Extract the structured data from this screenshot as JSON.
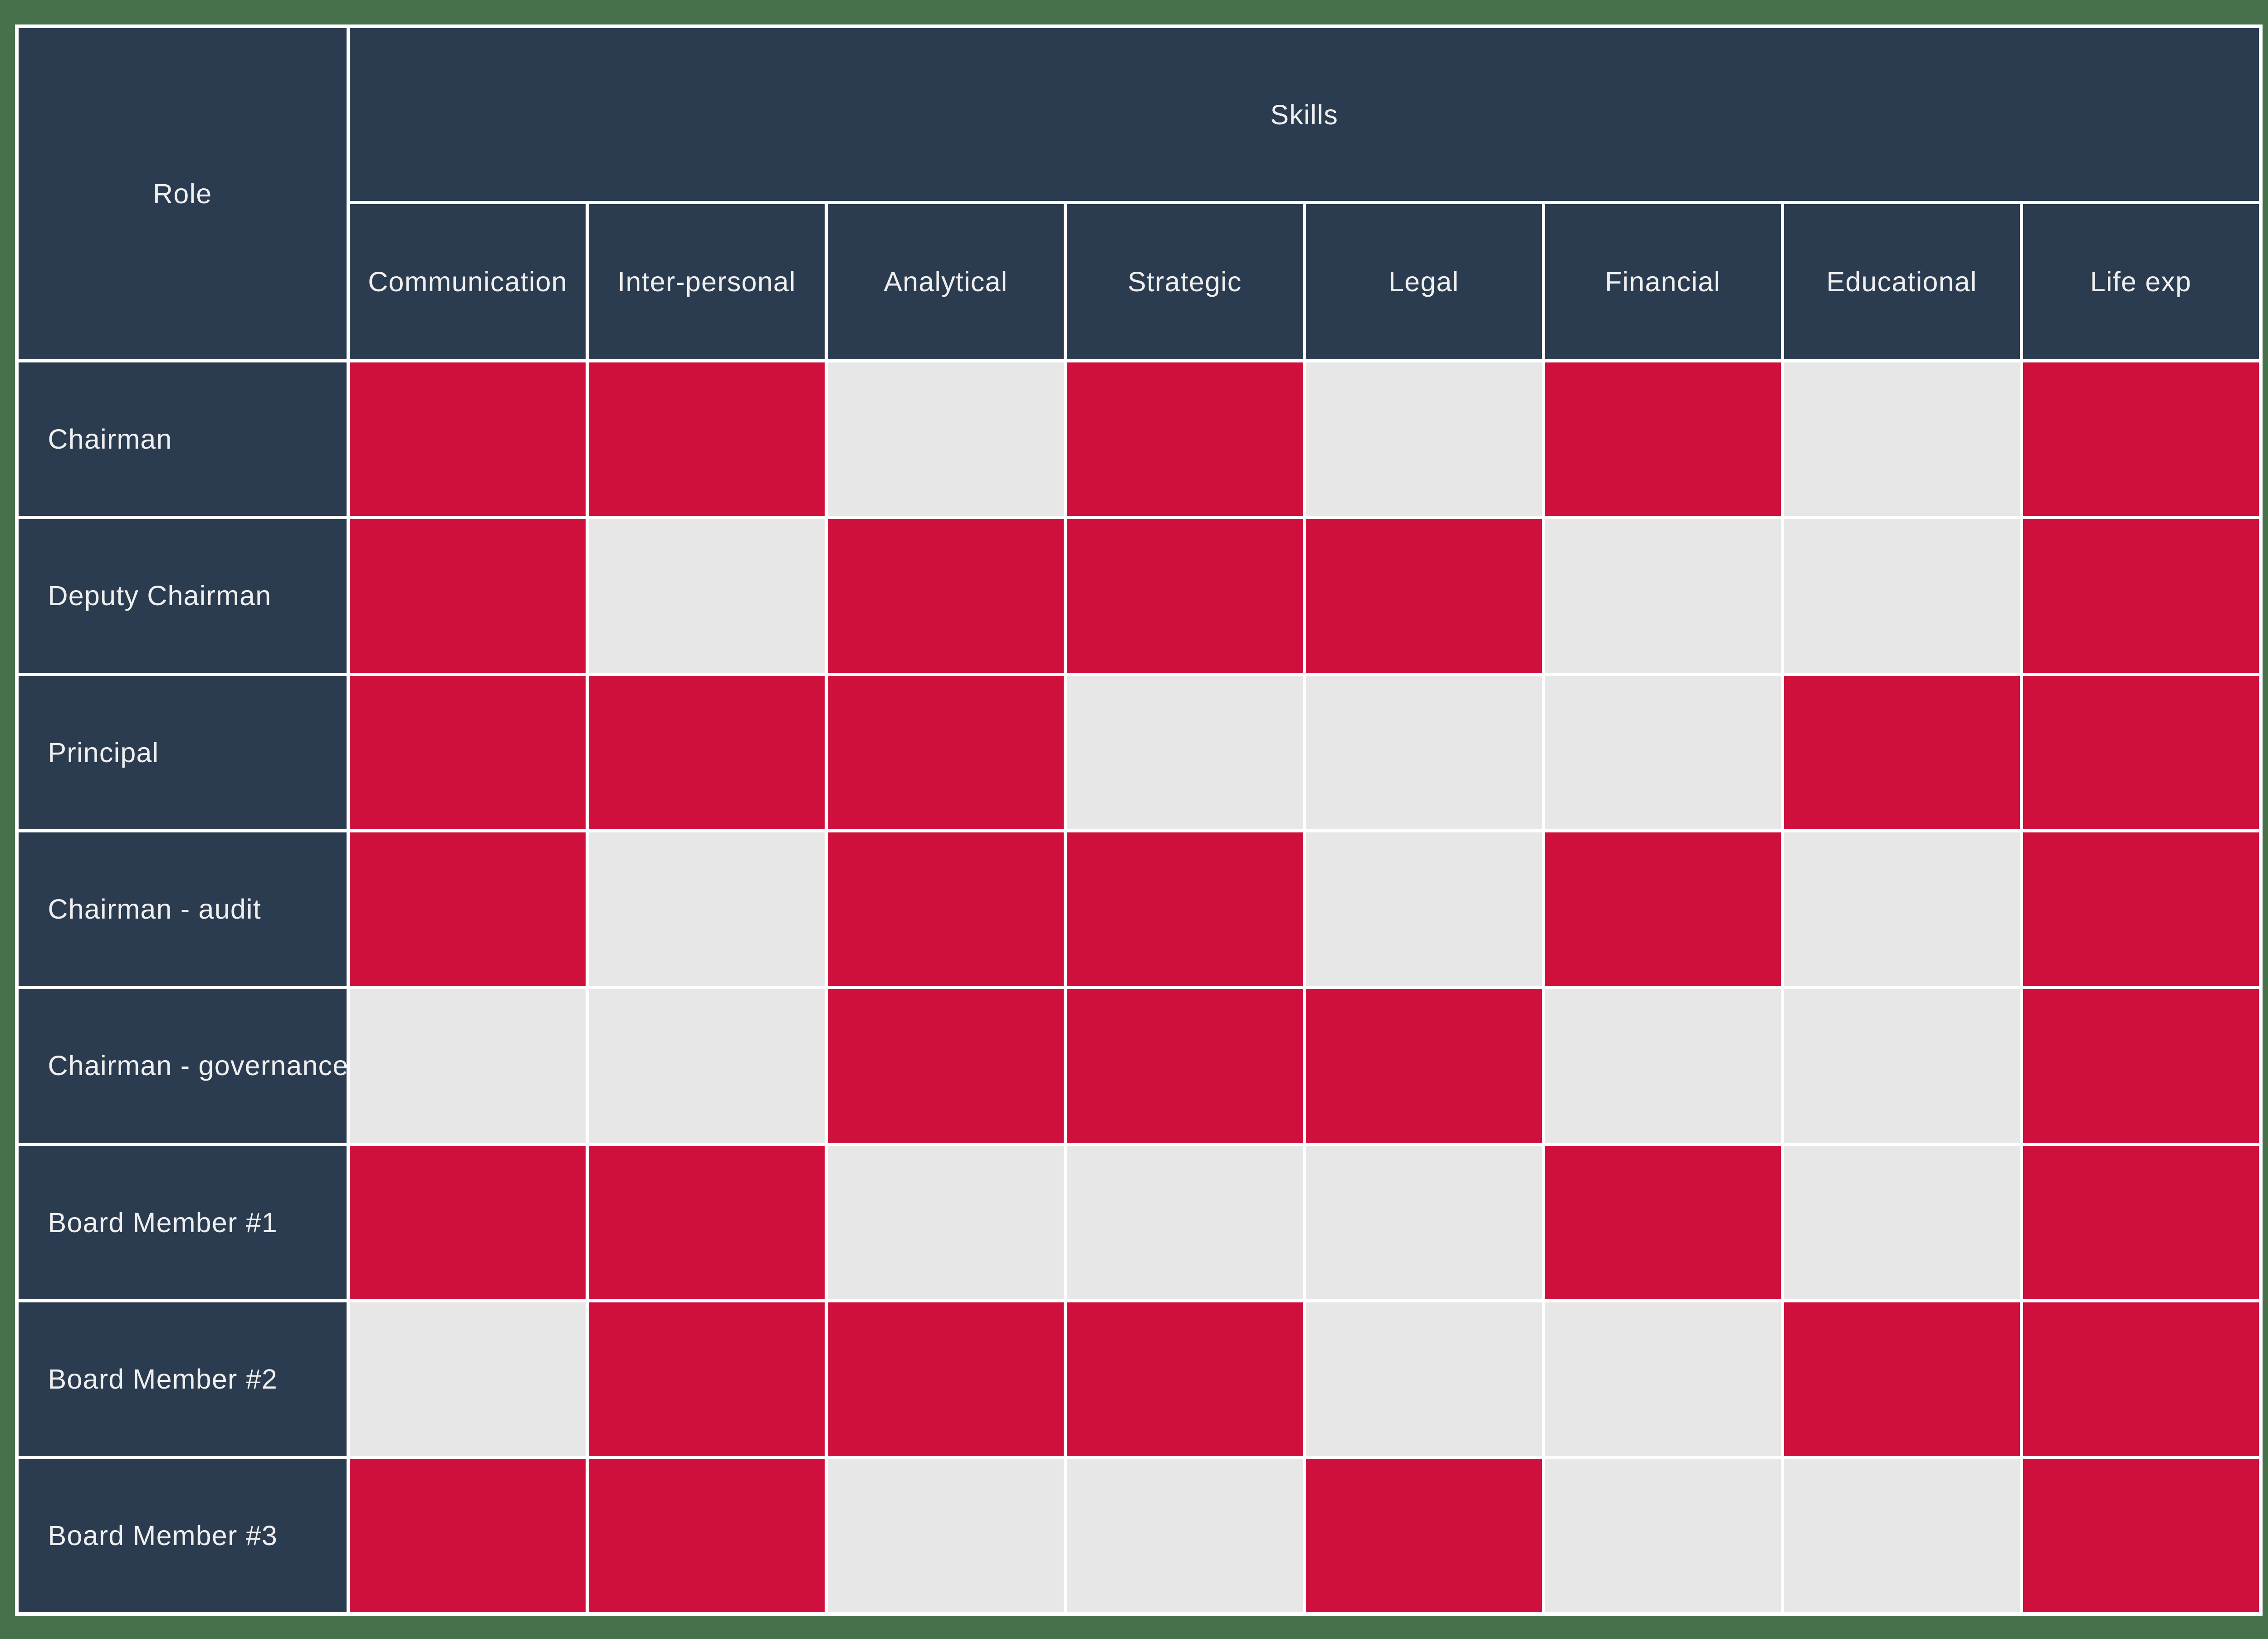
{
  "table": {
    "role_header": "Role",
    "skills_header": "Skills",
    "columns": [
      "Communication",
      "Inter-personal",
      "Analytical",
      "Strategic",
      "Legal",
      "Financial",
      "Educational",
      "Life exp"
    ],
    "rows": [
      {
        "label": "Chairman",
        "skills": [
          1,
          1,
          0,
          1,
          0,
          1,
          0,
          1
        ]
      },
      {
        "label": "Deputy Chairman",
        "skills": [
          1,
          0,
          1,
          1,
          1,
          0,
          0,
          1
        ]
      },
      {
        "label": "Principal",
        "skills": [
          1,
          1,
          1,
          0,
          0,
          0,
          1,
          1
        ]
      },
      {
        "label": "Chairman - audit",
        "skills": [
          1,
          0,
          1,
          1,
          0,
          1,
          0,
          1
        ]
      },
      {
        "label": "Chairman - governance",
        "skills": [
          0,
          0,
          1,
          1,
          1,
          0,
          0,
          1
        ]
      },
      {
        "label": "Board Member #1",
        "skills": [
          1,
          1,
          0,
          0,
          0,
          1,
          0,
          1
        ]
      },
      {
        "label": "Board Member #2",
        "skills": [
          0,
          1,
          1,
          1,
          0,
          0,
          1,
          1
        ]
      },
      {
        "label": "Board Member #3",
        "skills": [
          1,
          1,
          0,
          0,
          1,
          0,
          0,
          1
        ]
      }
    ],
    "colors": {
      "has_skill": "#D0103C",
      "no_skill": "#E8E7E7",
      "header_bg": "#2B3C50",
      "page_background": "#46714B",
      "grid_line": "#FFFFFF",
      "header_text": "#F0EFEF"
    }
  },
  "chart_data": {
    "type": "table",
    "title": "Skills",
    "row_header": "Role",
    "columns": [
      "Communication",
      "Inter-personal",
      "Analytical",
      "Strategic",
      "Legal",
      "Financial",
      "Educational",
      "Life exp"
    ],
    "rows": [
      "Chairman",
      "Deputy Chairman",
      "Principal",
      "Chairman - audit",
      "Chairman - governance",
      "Board Member #1",
      "Board Member #2",
      "Board Member #3"
    ],
    "matrix": [
      [
        1,
        1,
        0,
        1,
        0,
        1,
        0,
        1
      ],
      [
        1,
        0,
        1,
        1,
        1,
        0,
        0,
        1
      ],
      [
        1,
        1,
        1,
        0,
        0,
        0,
        1,
        1
      ],
      [
        1,
        0,
        1,
        1,
        0,
        1,
        0,
        1
      ],
      [
        0,
        0,
        1,
        1,
        1,
        0,
        0,
        1
      ],
      [
        1,
        1,
        0,
        0,
        0,
        1,
        0,
        1
      ],
      [
        0,
        1,
        1,
        1,
        0,
        0,
        1,
        1
      ],
      [
        1,
        1,
        0,
        0,
        1,
        0,
        0,
        1
      ]
    ],
    "cell_encoding": {
      "1": "has skill (#D0103C red)",
      "0": "no skill (#E8E7E7 gray)"
    },
    "layout_hints": {
      "grid": "on",
      "header_orientation": "top and left",
      "legend": "none"
    }
  }
}
